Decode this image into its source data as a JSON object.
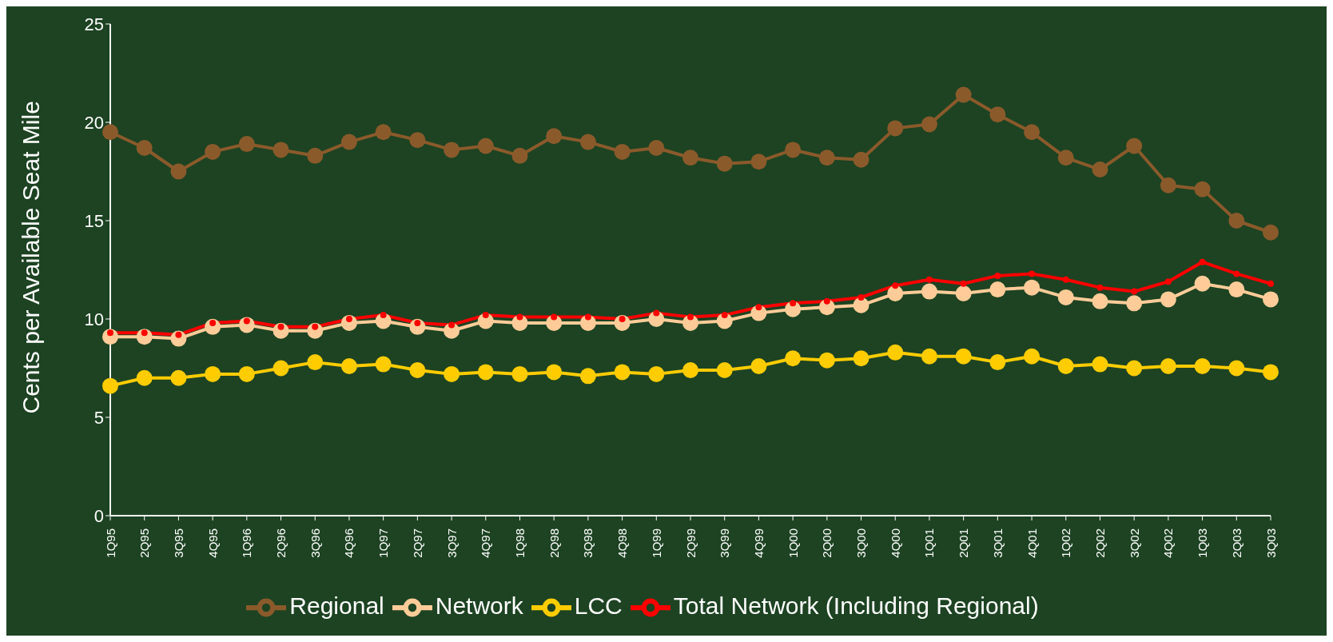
{
  "chart_data": {
    "type": "line",
    "ylabel": "Cents per Available Seat Mile",
    "categories": [
      "1Q95",
      "2Q95",
      "3Q95",
      "4Q95",
      "1Q96",
      "2Q96",
      "3Q96",
      "4Q96",
      "1Q97",
      "2Q97",
      "3Q97",
      "4Q97",
      "1Q98",
      "2Q98",
      "3Q98",
      "4Q98",
      "1Q99",
      "2Q99",
      "3Q99",
      "4Q99",
      "1Q00",
      "2Q00",
      "3Q00",
      "4Q00",
      "1Q01",
      "2Q01",
      "3Q01",
      "4Q01",
      "1Q02",
      "2Q02",
      "3Q02",
      "4Q02",
      "1Q03",
      "2Q03",
      "3Q03"
    ],
    "series": [
      {
        "name": "Regional",
        "color": "#8b5a2b",
        "values": [
          19.5,
          18.7,
          17.5,
          18.5,
          18.9,
          18.6,
          18.3,
          19.0,
          19.5,
          19.1,
          18.6,
          18.8,
          18.3,
          19.3,
          19.0,
          18.5,
          18.7,
          18.2,
          17.9,
          18.0,
          18.6,
          18.2,
          18.1,
          19.7,
          19.9,
          21.4,
          20.4,
          19.5,
          18.2,
          17.6,
          18.8,
          16.8,
          16.6,
          15.0,
          14.4
        ]
      },
      {
        "name": "Network",
        "color": "#ffcc99",
        "values": [
          9.1,
          9.1,
          9.0,
          9.6,
          9.7,
          9.4,
          9.4,
          9.8,
          9.9,
          9.6,
          9.4,
          9.9,
          9.8,
          9.8,
          9.8,
          9.8,
          10.0,
          9.8,
          9.9,
          10.3,
          10.5,
          10.6,
          10.7,
          11.3,
          11.4,
          11.3,
          11.5,
          11.6,
          11.1,
          10.9,
          10.8,
          11.0,
          11.8,
          11.5,
          11.0
        ]
      },
      {
        "name": "LCC",
        "color": "#ffcc00",
        "values": [
          6.6,
          7.0,
          7.0,
          7.2,
          7.2,
          7.5,
          7.8,
          7.6,
          7.7,
          7.4,
          7.2,
          7.3,
          7.2,
          7.3,
          7.1,
          7.3,
          7.2,
          7.4,
          7.4,
          7.6,
          8.0,
          7.9,
          8.0,
          8.3,
          8.1,
          8.1,
          7.8,
          8.1,
          7.6,
          7.7,
          7.5,
          7.6,
          7.6,
          7.5,
          7.3
        ]
      },
      {
        "name": "Total Network (Including Regional)",
        "color": "#ff0000",
        "values": [
          9.3,
          9.3,
          9.2,
          9.8,
          9.9,
          9.6,
          9.6,
          10.0,
          10.2,
          9.8,
          9.7,
          10.2,
          10.1,
          10.1,
          10.1,
          10.0,
          10.3,
          10.1,
          10.2,
          10.6,
          10.8,
          10.9,
          11.1,
          11.7,
          12.0,
          11.8,
          12.2,
          12.3,
          12.0,
          11.6,
          11.4,
          11.9,
          12.9,
          12.3,
          11.8
        ]
      }
    ],
    "ylim": [
      0,
      25
    ],
    "yticks": [
      0,
      5,
      10,
      15,
      20,
      25
    ],
    "grid": false,
    "legend": "bottom",
    "marker": "circle",
    "line_style": "solid"
  }
}
